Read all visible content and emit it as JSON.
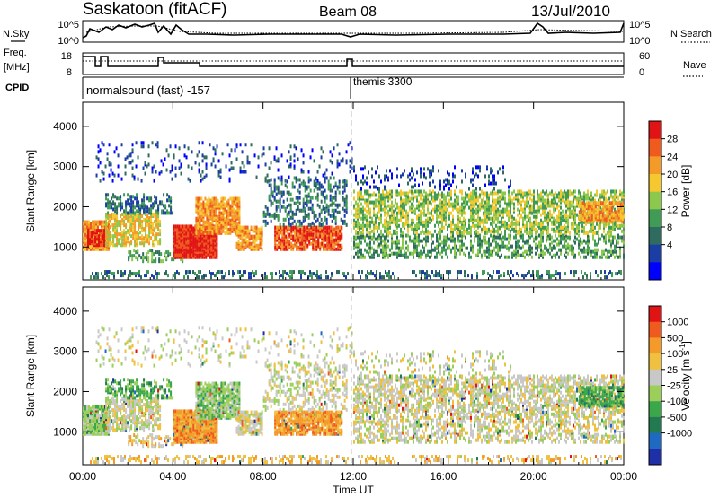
{
  "header": {
    "title": "Saskatoon (fitACF)",
    "beam": "Beam 08",
    "date": "13/Jul/2010"
  },
  "ancillary": {
    "nsky_label": "N.Sky",
    "nsky_ticks": [
      "10^5",
      "10^0"
    ],
    "nsearch_label": "N.Search",
    "nsearch_ticks": [
      "10^5",
      "10^0"
    ],
    "freq_label_1": "Freq.",
    "freq_label_2": "[MHz]",
    "freq_ticks": [
      "18",
      "8"
    ],
    "nave_label": "Nave",
    "nave_ticks": [
      "60",
      "0"
    ],
    "cpid_label": "CPID",
    "cpid_1": "normalsound (fast) -157",
    "cpid_2": "themis 3300"
  },
  "chart_data": [
    {
      "type": "heatmap",
      "title": "",
      "ylabel": "Slant Range [km]",
      "xlabel": "",
      "x_ticks": [
        "00:00",
        "04:00",
        "08:00",
        "12:00",
        "16:00",
        "20:00",
        "00:00"
      ],
      "xlim_hours": [
        0,
        24
      ],
      "y_ticks": [
        1000,
        2000,
        3000,
        4000
      ],
      "ylim": [
        180,
        4600
      ],
      "colorbar": {
        "label": "Power [dB]",
        "ticks": [
          4,
          8,
          12,
          16,
          20,
          24,
          28
        ],
        "colors": [
          "#0000ff",
          "#1b3ea6",
          "#2f6b5e",
          "#3f9b55",
          "#8cc84b",
          "#f6c830",
          "#f39a28",
          "#ef5a1e",
          "#e01414"
        ]
      }
    },
    {
      "type": "heatmap",
      "title": "",
      "ylabel": "Slant Range [km]",
      "xlabel": "Time UT",
      "x_ticks": [
        "00:00",
        "04:00",
        "08:00",
        "12:00",
        "16:00",
        "20:00",
        "00:00"
      ],
      "xlim_hours": [
        0,
        24
      ],
      "y_ticks": [
        1000,
        2000,
        3000,
        4000
      ],
      "ylim": [
        180,
        4600
      ],
      "colorbar": {
        "label": "Velocity [m s^-1]",
        "ticks": [
          "1000",
          "500",
          "100",
          "25",
          "-25",
          "-100",
          "-500",
          "-1000"
        ],
        "colors": [
          "#1e2fa8",
          "#1e6ac0",
          "#237a50",
          "#3aa84a",
          "#9bcf5a",
          "#c8c8c8",
          "#f0c040",
          "#f39a28",
          "#ef5a1e",
          "#e01414"
        ]
      }
    }
  ]
}
